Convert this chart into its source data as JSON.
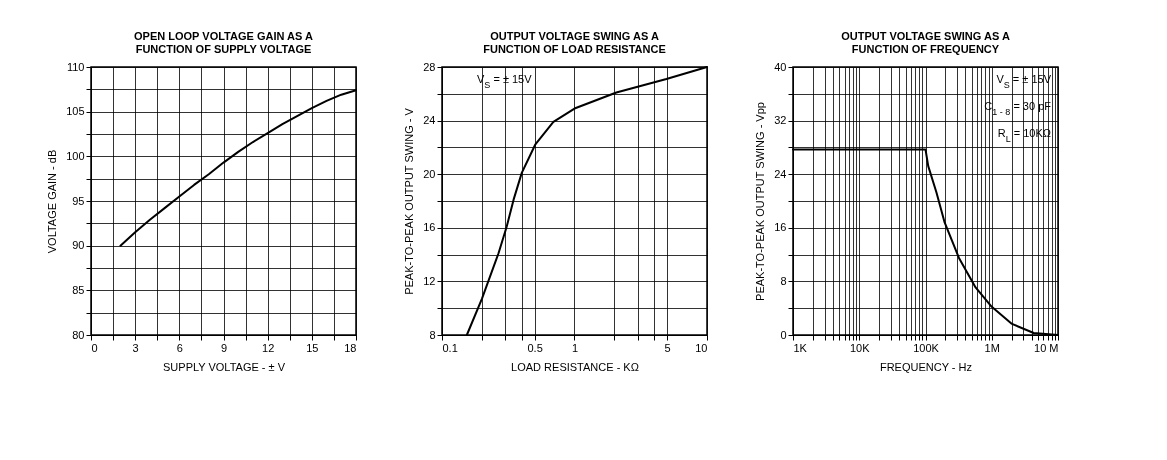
{
  "chart_data": [
    {
      "type": "line",
      "title": "OPEN LOOP VOLTAGE GAIN AS A\nFUNCTION OF SUPPLY VOLTAGE",
      "xlabel": "SUPPLY VOLTAGE - ± V",
      "ylabel": "VOLTAGE GAIN - dB",
      "x": [
        2,
        3,
        4,
        5,
        6,
        7,
        8,
        9,
        10,
        11,
        12,
        13,
        14,
        15,
        16,
        17,
        18
      ],
      "series": [
        {
          "color": "#000000",
          "values": [
            90,
            91.5,
            92.9,
            94.2,
            95.5,
            96.8,
            98,
            99.3,
            100.5,
            101.6,
            102.6,
            103.6,
            104.5,
            105.4,
            106.2,
            106.9,
            107.4
          ]
        }
      ],
      "xlim": [
        0,
        18
      ],
      "xticks": [
        0,
        {
          "value": 1.5,
          "label": null
        },
        3,
        {
          "value": 4.5,
          "label": null
        },
        6,
        {
          "value": 7.5,
          "label": null
        },
        9,
        {
          "value": 10.5,
          "label": null
        },
        12,
        {
          "value": 13.5,
          "label": null
        },
        15,
        {
          "value": 16.5,
          "label": null
        },
        18
      ],
      "ylim": [
        80,
        110
      ],
      "yticks": [
        80,
        {
          "value": 82.5,
          "label": null
        },
        85,
        {
          "value": 87.5,
          "label": null
        },
        90,
        {
          "value": 92.5,
          "label": null
        },
        95,
        {
          "value": 97.5,
          "label": null
        },
        100,
        {
          "value": 102.5,
          "label": null
        },
        105,
        {
          "value": 107.5,
          "label": null
        },
        110
      ],
      "grid": true,
      "line_style": "solid"
    },
    {
      "type": "line",
      "title": "OUTPUT VOLTAGE SWING AS A\nFUNCTION OF LOAD RESISTANCE",
      "xlabel": "LOAD RESISTANCE - KΩ",
      "ylabel": "PEAK-TO-PEAK OUTPUT SWING - V",
      "annotations": [
        "V$_{S}$ = ± 15V"
      ],
      "x": [
        0.154,
        0.2,
        0.267,
        0.308,
        0.347,
        0.4,
        0.505,
        0.693,
        1,
        2.07,
        4.94,
        10
      ],
      "series": [
        {
          "color": "#000000",
          "values": [
            8,
            10.7,
            14.1,
            16.1,
            18.1,
            20.1,
            22.2,
            23.9,
            24.9,
            26.1,
            27.1,
            28
          ]
        }
      ],
      "log": "x",
      "xlim": [
        0.1,
        10
      ],
      "xticks": [
        0.1,
        {
          "value": 0.2,
          "label": null
        },
        {
          "value": 0.3,
          "label": null
        },
        {
          "value": 0.4,
          "label": null
        },
        0.5,
        1,
        {
          "value": 2,
          "label": null
        },
        {
          "value": 3,
          "label": null
        },
        {
          "value": 4,
          "label": null
        },
        5,
        10
      ],
      "ylim": [
        8,
        28
      ],
      "yticks": [
        8,
        {
          "value": 10,
          "label": null
        },
        12,
        {
          "value": 14,
          "label": null
        },
        16,
        {
          "value": 18,
          "label": null
        },
        20,
        {
          "value": 22,
          "label": null
        },
        24,
        {
          "value": 26,
          "label": null
        },
        28
      ],
      "grid": true,
      "line_style": "solid"
    },
    {
      "type": "line",
      "title": "OUTPUT VOLTAGE SWING AS A\nFUNCTION OF FREQUENCY",
      "xlabel": "FREQUENCY - Hz",
      "ylabel": "PEAK-TO-PEAK OUTPUT SWING - Vpp",
      "annotations": [
        "V$_{S}$ = ± 15V",
        "C$_{1 - 8}$ = 30 pF",
        "R$_{L}$ = 10KΩ"
      ],
      "x": [
        1000,
        100000,
        110000,
        146000,
        193000,
        320000,
        570000,
        1000000,
        1980000,
        4300000,
        10000000
      ],
      "series": [
        {
          "color": "#000000",
          "values": [
            27.7,
            27.7,
            25.2,
            21.3,
            16.9,
            11.5,
            7.1,
            4.2,
            1.7,
            0.3,
            0
          ]
        }
      ],
      "log": "x",
      "xlim": [
        1000,
        10000000
      ],
      "xticks": [
        {
          "value": 1000,
          "label": "1K"
        },
        {
          "value": 2000,
          "label": null
        },
        {
          "value": 3000,
          "label": null
        },
        {
          "value": 4000,
          "label": null
        },
        {
          "value": 5000,
          "label": null
        },
        {
          "value": 6000,
          "label": null
        },
        {
          "value": 7000,
          "label": null
        },
        {
          "value": 8000,
          "label": null
        },
        {
          "value": 9000,
          "label": null
        },
        {
          "value": 10000,
          "label": "10K"
        },
        {
          "value": 20000,
          "label": null
        },
        {
          "value": 30000,
          "label": null
        },
        {
          "value": 40000,
          "label": null
        },
        {
          "value": 50000,
          "label": null
        },
        {
          "value": 60000,
          "label": null
        },
        {
          "value": 70000,
          "label": null
        },
        {
          "value": 80000,
          "label": null
        },
        {
          "value": 90000,
          "label": null
        },
        {
          "value": 100000,
          "label": "100K"
        },
        {
          "value": 200000,
          "label": null
        },
        {
          "value": 300000,
          "label": null
        },
        {
          "value": 400000,
          "label": null
        },
        {
          "value": 500000,
          "label": null
        },
        {
          "value": 600000,
          "label": null
        },
        {
          "value": 700000,
          "label": null
        },
        {
          "value": 800000,
          "label": null
        },
        {
          "value": 900000,
          "label": null
        },
        {
          "value": 1000000,
          "label": "1M"
        },
        {
          "value": 2000000,
          "label": null
        },
        {
          "value": 3000000,
          "label": null
        },
        {
          "value": 4000000,
          "label": null
        },
        {
          "value": 5000000,
          "label": null
        },
        {
          "value": 6000000,
          "label": null
        },
        {
          "value": 7000000,
          "label": null
        },
        {
          "value": 8000000,
          "label": null
        },
        {
          "value": 9000000,
          "label": null
        },
        {
          "value": 10000000,
          "label": "10 M"
        }
      ],
      "ylim": [
        0,
        40
      ],
      "yticks": [
        0,
        {
          "value": 4,
          "label": null
        },
        8,
        {
          "value": 12,
          "label": null
        },
        16,
        {
          "value": 20,
          "label": null
        },
        24,
        {
          "value": 28,
          "label": null
        },
        32,
        {
          "value": 36,
          "label": null
        },
        40
      ],
      "grid": true,
      "line_style": "solid"
    }
  ]
}
